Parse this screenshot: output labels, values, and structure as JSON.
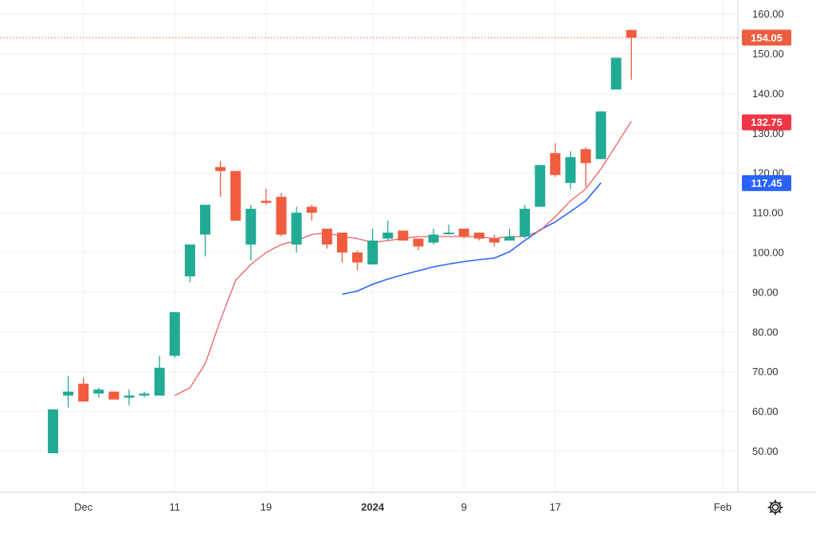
{
  "chart_data": {
    "type": "candlestick",
    "y_axis": {
      "ylim": [
        41.5,
        163
      ],
      "ticks": [
        160,
        150,
        140,
        130,
        120,
        110,
        100,
        90,
        80,
        70,
        60,
        50
      ],
      "tick_labels": [
        "160.00",
        "150.00",
        "140.00",
        "130.00",
        "120.00",
        "110.00",
        "100.00",
        "90.00",
        "80.00",
        "70.00",
        "60.00",
        "50.00"
      ]
    },
    "x_axis": {
      "tick_labels": [
        {
          "label": "Dec",
          "bold": false,
          "index": 2
        },
        {
          "label": "11",
          "bold": false,
          "index": 8
        },
        {
          "label": "19",
          "bold": false,
          "index": 14
        },
        {
          "label": "2024",
          "bold": true,
          "index": 21
        },
        {
          "label": "9",
          "bold": false,
          "index": 27
        },
        {
          "label": "17",
          "bold": false,
          "index": 33
        },
        {
          "label": "Feb",
          "bold": false,
          "index": 44
        }
      ]
    },
    "grid": true,
    "colors": {
      "up": "#22ab94",
      "down": "#f05d3e",
      "ma_short": "#f05d5d",
      "ma_long": "#2962ff",
      "last_price": "#f05d3e",
      "grid": "#eef0f3"
    },
    "candles": [
      {
        "o": 49.5,
        "h": 60.5,
        "l": 49.5,
        "c": 60.5
      },
      {
        "o": 64.0,
        "h": 69.0,
        "l": 61.0,
        "c": 65.0
      },
      {
        "o": 67.0,
        "h": 68.5,
        "l": 62.5,
        "c": 62.5
      },
      {
        "o": 64.5,
        "h": 66.0,
        "l": 63.5,
        "c": 65.5
      },
      {
        "o": 65.0,
        "h": 65.0,
        "l": 63.0,
        "c": 63.0
      },
      {
        "o": 63.5,
        "h": 65.5,
        "l": 61.5,
        "c": 64.0
      },
      {
        "o": 64.0,
        "h": 65.0,
        "l": 63.5,
        "c": 64.5
      },
      {
        "o": 64.0,
        "h": 74.0,
        "l": 64.0,
        "c": 71.0
      },
      {
        "o": 74.0,
        "h": 85.0,
        "l": 73.5,
        "c": 85.0
      },
      {
        "o": 94.0,
        "h": 102.0,
        "l": 92.5,
        "c": 102.0
      },
      {
        "o": 104.5,
        "h": 112.0,
        "l": 99.0,
        "c": 112.0
      },
      {
        "o": 121.5,
        "h": 123.0,
        "l": 114.0,
        "c": 120.5
      },
      {
        "o": 120.5,
        "h": 120.5,
        "l": 108.0,
        "c": 108.0
      },
      {
        "o": 102.0,
        "h": 112.0,
        "l": 98.0,
        "c": 111.0
      },
      {
        "o": 113.0,
        "h": 116.0,
        "l": 112.0,
        "c": 112.5
      },
      {
        "o": 114.0,
        "h": 115.0,
        "l": 104.0,
        "c": 104.5
      },
      {
        "o": 102.0,
        "h": 111.5,
        "l": 100.0,
        "c": 110.0
      },
      {
        "o": 111.5,
        "h": 112.0,
        "l": 108.0,
        "c": 110.0
      },
      {
        "o": 106.0,
        "h": 106.0,
        "l": 101.0,
        "c": 102.0
      },
      {
        "o": 105.0,
        "h": 105.0,
        "l": 97.5,
        "c": 100.0
      },
      {
        "o": 100.0,
        "h": 100.5,
        "l": 95.5,
        "c": 97.5
      },
      {
        "o": 97.0,
        "h": 106.0,
        "l": 97.0,
        "c": 103.0
      },
      {
        "o": 103.5,
        "h": 108.0,
        "l": 103.0,
        "c": 105.0
      },
      {
        "o": 105.5,
        "h": 105.5,
        "l": 103.0,
        "c": 103.0
      },
      {
        "o": 103.5,
        "h": 103.5,
        "l": 100.5,
        "c": 101.5
      },
      {
        "o": 102.5,
        "h": 106.0,
        "l": 102.0,
        "c": 104.5
      },
      {
        "o": 105.0,
        "h": 107.0,
        "l": 104.5,
        "c": 105.0
      },
      {
        "o": 106.0,
        "h": 106.0,
        "l": 103.5,
        "c": 104.0
      },
      {
        "o": 105.0,
        "h": 105.0,
        "l": 103.0,
        "c": 103.5
      },
      {
        "o": 103.5,
        "h": 104.5,
        "l": 101.5,
        "c": 102.5
      },
      {
        "o": 103.0,
        "h": 106.0,
        "l": 103.0,
        "c": 104.0
      },
      {
        "o": 104.0,
        "h": 112.0,
        "l": 103.5,
        "c": 111.0
      },
      {
        "o": 111.5,
        "h": 122.0,
        "l": 111.5,
        "c": 122.0
      },
      {
        "o": 125.0,
        "h": 127.5,
        "l": 119.0,
        "c": 119.5
      },
      {
        "o": 117.5,
        "h": 125.5,
        "l": 116.0,
        "c": 124.0
      },
      {
        "o": 126.0,
        "h": 126.5,
        "l": 116.5,
        "c": 122.5
      },
      {
        "o": 123.5,
        "h": 135.5,
        "l": 123.5,
        "c": 135.5
      },
      {
        "o": 141.0,
        "h": 149.0,
        "l": 141.0,
        "c": 149.0
      },
      {
        "o": 156.0,
        "h": 156.0,
        "l": 143.5,
        "c": 154.05
      }
    ],
    "ma_short": [
      null,
      null,
      null,
      null,
      null,
      null,
      null,
      null,
      64,
      66,
      72,
      83,
      93,
      97,
      100,
      102,
      103,
      104.5,
      105,
      104,
      103.5,
      102.5,
      103,
      103.5,
      104,
      104,
      104,
      104,
      104,
      103.5,
      104,
      104,
      105.5,
      109,
      113,
      116,
      121,
      127,
      133
    ],
    "ma_long": [
      null,
      null,
      null,
      null,
      null,
      null,
      null,
      null,
      null,
      null,
      null,
      null,
      null,
      null,
      null,
      null,
      null,
      null,
      null,
      89.5,
      90.3,
      92,
      93.3,
      94.4,
      95.4,
      96.4,
      97.1,
      97.7,
      98.2,
      98.6,
      100.2,
      103,
      105.7,
      107.7,
      110.3,
      113,
      117.5
    ],
    "badges": {
      "last_price": "154.05",
      "ma_short": "132.75",
      "ma_long": "117.45"
    }
  }
}
